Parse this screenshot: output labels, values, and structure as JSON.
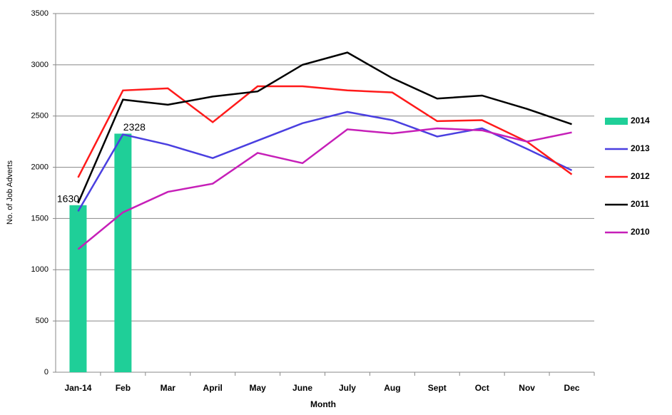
{
  "chart_data": {
    "type": "bar-line",
    "x_label": "Month",
    "y_label": "No. of Job Adverts",
    "categories": [
      "Jan-14",
      "Feb",
      "Mar",
      "April",
      "May",
      "June",
      "July",
      "Aug",
      "Sept",
      "Oct",
      "Nov",
      "Dec"
    ],
    "series": [
      {
        "name": "2014",
        "kind": "bar",
        "color": "#1fcf98",
        "values": [
          1630,
          2328,
          null,
          null,
          null,
          null,
          null,
          null,
          null,
          null,
          null,
          null
        ]
      },
      {
        "name": "2013",
        "kind": "line",
        "color": "#4a3fe0",
        "values": [
          1570,
          2320,
          2220,
          2090,
          2260,
          2430,
          2540,
          2460,
          2300,
          2380,
          2180,
          1970
        ]
      },
      {
        "name": "2012",
        "kind": "line",
        "color": "#ff1a1a",
        "values": [
          1900,
          2750,
          2770,
          2440,
          2790,
          2790,
          2750,
          2730,
          2450,
          2460,
          2250,
          1930
        ]
      },
      {
        "name": "2011",
        "kind": "line",
        "color": "#000000",
        "values": [
          1650,
          2660,
          2610,
          2690,
          2740,
          3000,
          3120,
          2870,
          2670,
          2700,
          2570,
          2420
        ]
      },
      {
        "name": "2010",
        "kind": "line",
        "color": "#c61fb8",
        "values": [
          1200,
          1560,
          1760,
          1840,
          2140,
          2040,
          2370,
          2330,
          2380,
          2360,
          2250,
          2340
        ]
      }
    ],
    "ylim": [
      0,
      3500
    ],
    "yticks": [
      0,
      500,
      1000,
      1500,
      2000,
      2500,
      3000,
      3500
    ],
    "grid": true,
    "legend": "right"
  }
}
